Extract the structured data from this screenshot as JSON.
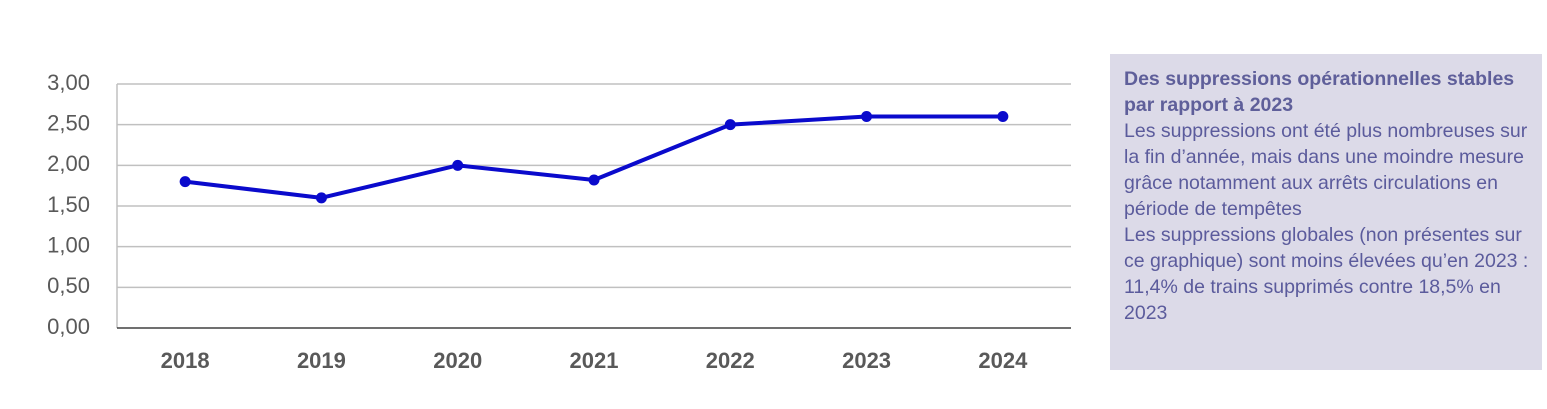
{
  "chart_data": {
    "type": "line",
    "categories": [
      "2018",
      "2019",
      "2020",
      "2021",
      "2022",
      "2023",
      "2024"
    ],
    "values": [
      1.8,
      1.6,
      2.0,
      1.82,
      2.5,
      2.6,
      2.6
    ],
    "color": "#0a0acc",
    "ylim": [
      0,
      3
    ],
    "yticks": [
      {
        "value": 0,
        "label": "0,00"
      },
      {
        "value": 0.5,
        "label": "0,50"
      },
      {
        "value": 1,
        "label": "1,00"
      },
      {
        "value": 1.5,
        "label": "1,50"
      },
      {
        "value": 2,
        "label": "2,00"
      },
      {
        "value": 2.5,
        "label": "2,50"
      },
      {
        "value": 3,
        "label": "3,00"
      }
    ],
    "grid": true
  },
  "text_box": {
    "title": "Des suppressions opérationnelles stables par rapport à 2023",
    "paragraphs": [
      "Les suppressions ont été plus nombreuses sur la fin d’année, mais dans une moindre mesure grâce notamment aux arrêts circulations en période de tempêtes",
      "Les suppressions globales (non présentes sur ce graphique) sont moins élevées qu’en 2023 : 11,4% de trains supprimés contre 18,5% en 2023"
    ]
  }
}
